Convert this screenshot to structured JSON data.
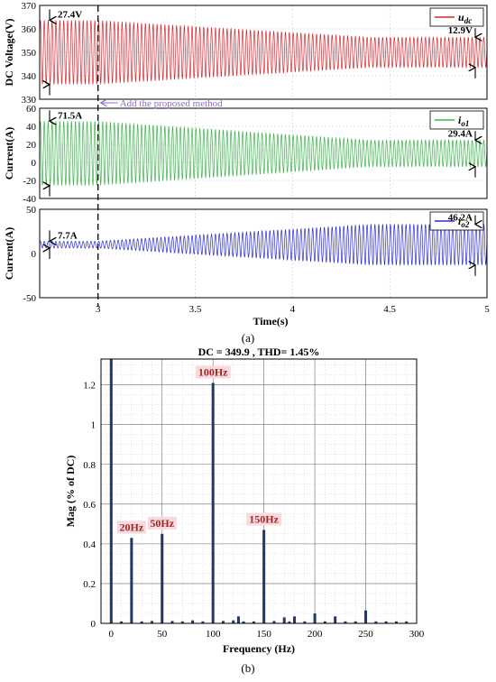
{
  "figure_a": {
    "caption": "(a)",
    "x_label": "Time(s)",
    "x_ticks": [
      "3",
      "3.5",
      "4",
      "4.5",
      "5"
    ],
    "x_tick_values": [
      3,
      3.5,
      4,
      4.5,
      5
    ],
    "x_range": [
      2.7,
      5
    ],
    "event_time": 3,
    "event_label": "Add the proposed method",
    "panels": [
      {
        "id": "udc",
        "ylabel": "DC Voltage(V)",
        "legend_label": "u",
        "legend_sub": "dc",
        "color": "#d9272e",
        "ylim": [
          330,
          370
        ],
        "yticks": [
          330,
          340,
          350,
          360,
          370
        ],
        "ytick_labels": [
          "330",
          "340",
          "350",
          "360",
          "370"
        ],
        "dc_offset": 350,
        "amp_start": 13.7,
        "amp_end": 6.45,
        "left_annotation": "27.4V",
        "right_annotation": "12.9V"
      },
      {
        "id": "io1",
        "ylabel": "Current(A)",
        "legend_label": "i",
        "legend_sub": "o1",
        "color": "#39b54a",
        "ylim": [
          -40,
          60
        ],
        "yticks": [
          -40,
          -20,
          0,
          20,
          40,
          60
        ],
        "ytick_labels": [
          "-40",
          "-20",
          "0",
          "20",
          "40",
          "60"
        ],
        "dc_offset": 10,
        "amp_start": 35.75,
        "amp_end": 14.7,
        "left_annotation": "71.5A",
        "right_annotation": "29.4A"
      },
      {
        "id": "io2",
        "ylabel": "Current(A)",
        "legend_label": "i",
        "legend_sub": "o2",
        "color": "#2b2bd6",
        "ylim": [
          -50,
          50
        ],
        "yticks": [
          -50,
          0,
          50
        ],
        "ytick_labels": [
          "-50",
          "0",
          "50"
        ],
        "dc_offset": 10,
        "amp_start": 3.85,
        "amp_end": 23.1,
        "left_annotation": "7.7A",
        "right_annotation": "46.2A"
      }
    ]
  },
  "chart_data": {
    "type": "bar",
    "title": "DC = 349.9 , THD= 1.45%",
    "xlabel": "Frequency (Hz)",
    "ylabel": "Mag (% of DC)",
    "xlim": [
      -10,
      300
    ],
    "ylim": [
      0,
      1.33
    ],
    "xticks": [
      0,
      50,
      100,
      150,
      200,
      250,
      300
    ],
    "xtick_labels": [
      "0",
      "50",
      "100",
      "150",
      "200",
      "250",
      "300"
    ],
    "yticks": [
      0,
      0.2,
      0.4,
      0.6,
      0.8,
      1,
      1.2
    ],
    "ytick_labels": [
      "0",
      "0.2",
      "0.4",
      "0.6",
      "0.8",
      "1",
      "1.2"
    ],
    "grid": true,
    "bar_color": "#1f3864",
    "x": [
      0,
      10,
      20,
      30,
      40,
      50,
      60,
      70,
      80,
      90,
      100,
      110,
      120,
      125,
      130,
      140,
      150,
      160,
      170,
      175,
      180,
      190,
      200,
      210,
      220,
      230,
      240,
      250,
      260,
      270,
      280,
      290
    ],
    "values": [
      1.33,
      0.01,
      0.43,
      0.01,
      0.012,
      0.45,
      0.012,
      0.01,
      0.015,
      0.01,
      1.21,
      0.012,
      0.015,
      0.035,
      0.01,
      0.01,
      0.47,
      0.012,
      0.03,
      0.01,
      0.035,
      0.01,
      0.05,
      0.01,
      0.035,
      0.01,
      0.01,
      0.065,
      0.01,
      0.01,
      0.01,
      0.01
    ],
    "annotations": [
      {
        "x": 20,
        "y": 0.43,
        "label": "20Hz"
      },
      {
        "x": 50,
        "y": 0.45,
        "label": "50Hz"
      },
      {
        "x": 100,
        "y": 1.21,
        "label": "100Hz"
      },
      {
        "x": 150,
        "y": 0.47,
        "label": "150Hz"
      }
    ],
    "caption": "(b)"
  }
}
